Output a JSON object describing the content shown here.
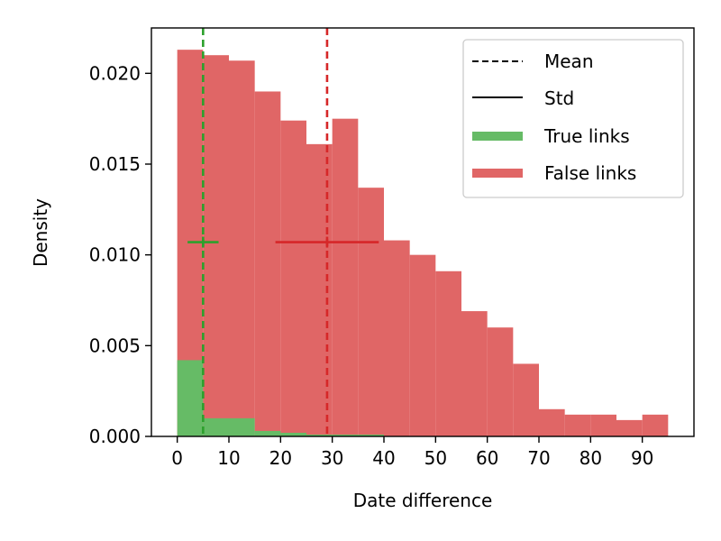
{
  "chart_data": {
    "type": "bar",
    "subtype": "histogram",
    "xlabel": "Date difference",
    "ylabel": "Density",
    "xlim": [
      -5,
      100
    ],
    "ylim": [
      0,
      0.0225
    ],
    "xticks": [
      0,
      10,
      20,
      30,
      40,
      50,
      60,
      70,
      80,
      90
    ],
    "yticks": [
      0.0,
      0.005,
      0.01,
      0.015,
      0.02
    ],
    "ytick_labels": [
      "0.000",
      "0.005",
      "0.010",
      "0.015",
      "0.020"
    ],
    "grid": false,
    "legend_position": "upper right",
    "series": [
      {
        "name": "False links",
        "color": "#e06666",
        "bin_edges": [
          0,
          5,
          10,
          15,
          20,
          25,
          30,
          35,
          40,
          45,
          50,
          55,
          60,
          65,
          70,
          75,
          80,
          85,
          90,
          95
        ],
        "values": [
          0.0213,
          0.021,
          0.0207,
          0.019,
          0.0174,
          0.0161,
          0.0175,
          0.0137,
          0.0108,
          0.01,
          0.0091,
          0.0069,
          0.006,
          0.004,
          0.0015,
          0.0012,
          0.0012,
          0.0009,
          0.0012
        ],
        "mean": 29,
        "std": 10,
        "mean_line_color": "#d62728"
      },
      {
        "name": "True links",
        "color": "#66bb66",
        "bin_edges": [
          0,
          5,
          10,
          15,
          20,
          25,
          30,
          35,
          40,
          45
        ],
        "values": [
          0.0042,
          0.001,
          0.001,
          0.0003,
          0.0002,
          0.0001,
          0.0001,
          0.0001,
          0.0
        ],
        "mean": 5,
        "std": 3,
        "mean_line_color": "#2ca02c"
      }
    ],
    "std_marker_y": 0.0107,
    "legend": [
      {
        "label": "Mean",
        "style": "dashed-line",
        "color": "#000000"
      },
      {
        "label": "Std",
        "style": "solid-line",
        "color": "#000000"
      },
      {
        "label": "True links",
        "style": "patch",
        "color": "#66bb66"
      },
      {
        "label": "False links",
        "style": "patch",
        "color": "#e06666"
      }
    ]
  }
}
